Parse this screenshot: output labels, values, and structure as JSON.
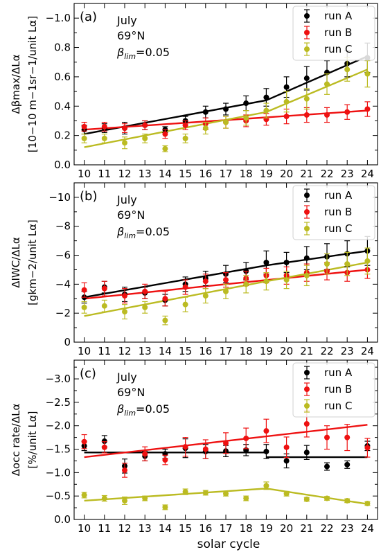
{
  "colors": {
    "run_a": "#000000",
    "run_b": "#ee1111",
    "run_c": "#bbbb22"
  },
  "xlabel": "solar cycle",
  "chart_data": [
    {
      "type": "scatter",
      "panel_label": "(a)",
      "annotations": [
        "July",
        "69°N",
        "β",
        "lim",
        "=0.05"
      ],
      "ylabel_lines": [
        "Δβmax/ΔLα",
        "[10−10 m−1sr−1/unit Lα]"
      ],
      "ylim": [
        0,
        1.1
      ],
      "inverted_y": false,
      "y_ticks": [
        0.0,
        0.2,
        0.4,
        0.6,
        0.8,
        1.0
      ],
      "y_tick_labels": [
        "0.0",
        "0.2",
        "0.4",
        "0.6",
        "0.8",
        "−1.0"
      ],
      "x": [
        10,
        11,
        12,
        13,
        14,
        15,
        16,
        17,
        18,
        19,
        20,
        21,
        22,
        23,
        24
      ],
      "x_tick_labels": [
        "10",
        "11",
        "12",
        "13",
        "14",
        "15",
        "16",
        "17",
        "18",
        "19",
        "20",
        "21",
        "22",
        "23",
        "24"
      ],
      "legend": {
        "placement": "top-right",
        "entries": [
          "run A",
          "run B",
          "run C"
        ]
      },
      "series": [
        {
          "name": "run A",
          "values": [
            0.24,
            0.25,
            0.25,
            0.27,
            0.24,
            0.3,
            0.36,
            0.38,
            0.42,
            0.46,
            0.53,
            0.59,
            0.63,
            0.69,
            0.73
          ],
          "errors": [
            0.03,
            0.03,
            0.04,
            0.03,
            0.02,
            0.03,
            0.04,
            0.04,
            0.05,
            0.06,
            0.07,
            0.08,
            0.08,
            0.09,
            0.1
          ]
        },
        {
          "name": "run B",
          "values": [
            0.26,
            0.26,
            0.25,
            0.27,
            0.21,
            0.27,
            0.28,
            0.29,
            0.3,
            0.31,
            0.33,
            0.34,
            0.34,
            0.36,
            0.38
          ],
          "errors": [
            0.03,
            0.03,
            0.03,
            0.03,
            0.03,
            0.03,
            0.04,
            0.04,
            0.04,
            0.04,
            0.05,
            0.05,
            0.05,
            0.05,
            0.05
          ]
        },
        {
          "name": "run C",
          "values": [
            0.18,
            0.18,
            0.15,
            0.18,
            0.11,
            0.18,
            0.25,
            0.29,
            0.32,
            0.37,
            0.43,
            0.45,
            0.55,
            0.65,
            0.62
          ],
          "errors": [
            0.03,
            0.03,
            0.04,
            0.03,
            0.02,
            0.03,
            0.04,
            0.04,
            0.05,
            0.05,
            0.07,
            0.07,
            0.07,
            0.08,
            0.09
          ]
        }
      ],
      "fits": [
        {
          "name": "run A",
          "segments": [
            {
              "x": [
                10,
                19
              ],
              "y": [
                0.21,
                0.44
              ]
            },
            {
              "x": [
                19,
                24
              ],
              "y": [
                0.44,
                0.74
              ]
            }
          ]
        },
        {
          "name": "run B",
          "segments": [
            {
              "x": [
                10,
                24
              ],
              "y": [
                0.24,
                0.37
              ]
            }
          ]
        },
        {
          "name": "run C",
          "segments": [
            {
              "x": [
                10,
                19
              ],
              "y": [
                0.12,
                0.36
              ]
            },
            {
              "x": [
                19,
                24
              ],
              "y": [
                0.36,
                0.65
              ]
            }
          ]
        }
      ]
    },
    {
      "type": "scatter",
      "panel_label": "(b)",
      "annotations": [
        "July",
        "69°N",
        "β",
        "lim",
        "=0.05"
      ],
      "ylabel_lines": [
        "ΔIWC/ΔLα",
        "[gkm−2/unit Lα]"
      ],
      "ylim": [
        0,
        11
      ],
      "inverted_y": false,
      "y_ticks": [
        0,
        2,
        4,
        6,
        8,
        10
      ],
      "y_tick_labels": [
        "0",
        "−2",
        "−4",
        "−6",
        "−8",
        "−10"
      ],
      "x": [
        10,
        11,
        12,
        13,
        14,
        15,
        16,
        17,
        18,
        19,
        20,
        21,
        22,
        23,
        24
      ],
      "x_tick_labels": [
        "10",
        "11",
        "12",
        "13",
        "14",
        "15",
        "16",
        "17",
        "18",
        "19",
        "20",
        "21",
        "22",
        "23",
        "24"
      ],
      "legend": {
        "placement": "top-right",
        "entries": [
          "run A",
          "run B",
          "run C"
        ]
      },
      "series": [
        {
          "name": "run A",
          "values": [
            3.1,
            3.8,
            3.3,
            3.4,
            2.9,
            4.0,
            4.4,
            4.7,
            4.9,
            5.5,
            5.5,
            5.8,
            5.9,
            6.1,
            6.3
          ],
          "errors": [
            0.4,
            0.4,
            0.5,
            0.4,
            0.4,
            0.5,
            0.5,
            0.6,
            0.6,
            0.8,
            0.7,
            0.8,
            0.9,
            0.9,
            1.0
          ]
        },
        {
          "name": "run B",
          "values": [
            3.6,
            3.7,
            3.2,
            3.5,
            3.0,
            3.8,
            4.2,
            4.3,
            4.4,
            4.6,
            4.6,
            4.8,
            4.9,
            4.8,
            5.0
          ],
          "errors": [
            0.5,
            0.5,
            0.5,
            0.5,
            0.5,
            0.5,
            0.5,
            0.5,
            0.5,
            0.5,
            0.6,
            0.6,
            0.6,
            0.6,
            0.6
          ]
        },
        {
          "name": "run C",
          "values": [
            2.4,
            2.5,
            2.1,
            2.4,
            1.5,
            2.6,
            3.2,
            3.5,
            4.0,
            4.2,
            4.3,
            4.6,
            5.4,
            5.4,
            5.6
          ],
          "errors": [
            0.4,
            0.4,
            0.5,
            0.4,
            0.3,
            0.5,
            0.5,
            0.5,
            0.6,
            0.6,
            0.6,
            0.7,
            0.7,
            0.8,
            0.9
          ]
        }
      ],
      "fits": [
        {
          "name": "run A",
          "segments": [
            {
              "x": [
                10,
                19
              ],
              "y": [
                3.1,
                5.3
              ]
            },
            {
              "x": [
                19,
                24
              ],
              "y": [
                5.3,
                6.3
              ]
            }
          ]
        },
        {
          "name": "run B",
          "segments": [
            {
              "x": [
                10,
                24
              ],
              "y": [
                3.0,
                5.0
              ]
            }
          ]
        },
        {
          "name": "run C",
          "segments": [
            {
              "x": [
                10,
                19
              ],
              "y": [
                1.8,
                4.2
              ]
            },
            {
              "x": [
                19,
                24
              ],
              "y": [
                4.2,
                5.5
              ]
            }
          ]
        }
      ]
    },
    {
      "type": "scatter",
      "panel_label": "(c)",
      "annotations": [
        "July",
        "69°N",
        "β",
        "lim",
        "=0.05"
      ],
      "ylabel_lines": [
        "Δocc rate/ΔLα",
        "[%/unit Lα]"
      ],
      "ylim": [
        0,
        3.4
      ],
      "inverted_y": false,
      "y_ticks": [
        0.0,
        0.5,
        1.0,
        1.5,
        2.0,
        2.5,
        3.0
      ],
      "y_tick_labels": [
        "0.0",
        "−0.5",
        "−1.0",
        "−1.5",
        "−2.0",
        "−2.5",
        "−3.0"
      ],
      "x": [
        10,
        11,
        12,
        13,
        14,
        15,
        16,
        17,
        18,
        19,
        20,
        21,
        22,
        23,
        24
      ],
      "x_tick_labels": [
        "10",
        "11",
        "12",
        "13",
        "14",
        "15",
        "16",
        "17",
        "18",
        "19",
        "20",
        "21",
        "22",
        "23",
        "24"
      ],
      "legend": {
        "placement": "top-right",
        "entries": [
          "run A",
          "run B",
          "run C"
        ]
      },
      "series": [
        {
          "name": "run A",
          "values": [
            1.57,
            1.67,
            1.14,
            1.35,
            1.4,
            1.52,
            1.45,
            1.46,
            1.48,
            1.45,
            1.25,
            1.43,
            1.13,
            1.17,
            1.57
          ],
          "errors": [
            0.1,
            0.12,
            0.15,
            0.1,
            0.1,
            0.2,
            0.15,
            0.12,
            0.12,
            0.15,
            0.15,
            0.15,
            0.08,
            0.08,
            0.1
          ]
        },
        {
          "name": "run B",
          "values": [
            1.66,
            1.54,
            1.05,
            1.4,
            1.27,
            1.55,
            1.5,
            1.63,
            1.73,
            1.89,
            1.54,
            2.04,
            1.75,
            1.75,
            1.53
          ],
          "errors": [
            0.15,
            0.12,
            0.15,
            0.15,
            0.1,
            0.2,
            0.2,
            0.22,
            0.22,
            0.25,
            0.22,
            0.28,
            0.25,
            0.28,
            0.2
          ]
        },
        {
          "name": "run C",
          "values": [
            0.52,
            0.45,
            0.4,
            0.45,
            0.26,
            0.59,
            0.57,
            0.55,
            0.45,
            0.72,
            0.55,
            0.43,
            0.45,
            0.4,
            0.34
          ],
          "errors": [
            0.06,
            0.06,
            0.08,
            0.05,
            0.05,
            0.06,
            0.05,
            0.05,
            0.05,
            0.08,
            0.05,
            0.04,
            0.04,
            0.04,
            0.04
          ]
        }
      ],
      "fits": [
        {
          "name": "run A",
          "segments": [
            {
              "x": [
                10,
                19
              ],
              "y": [
                1.43,
                1.43
              ]
            },
            {
              "x": [
                19,
                24
              ],
              "y": [
                1.33,
                1.33
              ]
            }
          ]
        },
        {
          "name": "run B",
          "segments": [
            {
              "x": [
                10,
                24
              ],
              "y": [
                1.33,
                2.02
              ]
            }
          ]
        },
        {
          "name": "run C",
          "segments": [
            {
              "x": [
                10,
                19
              ],
              "y": [
                0.4,
                0.66
              ]
            },
            {
              "x": [
                19,
                24
              ],
              "y": [
                0.66,
                0.33
              ]
            }
          ]
        }
      ]
    }
  ]
}
